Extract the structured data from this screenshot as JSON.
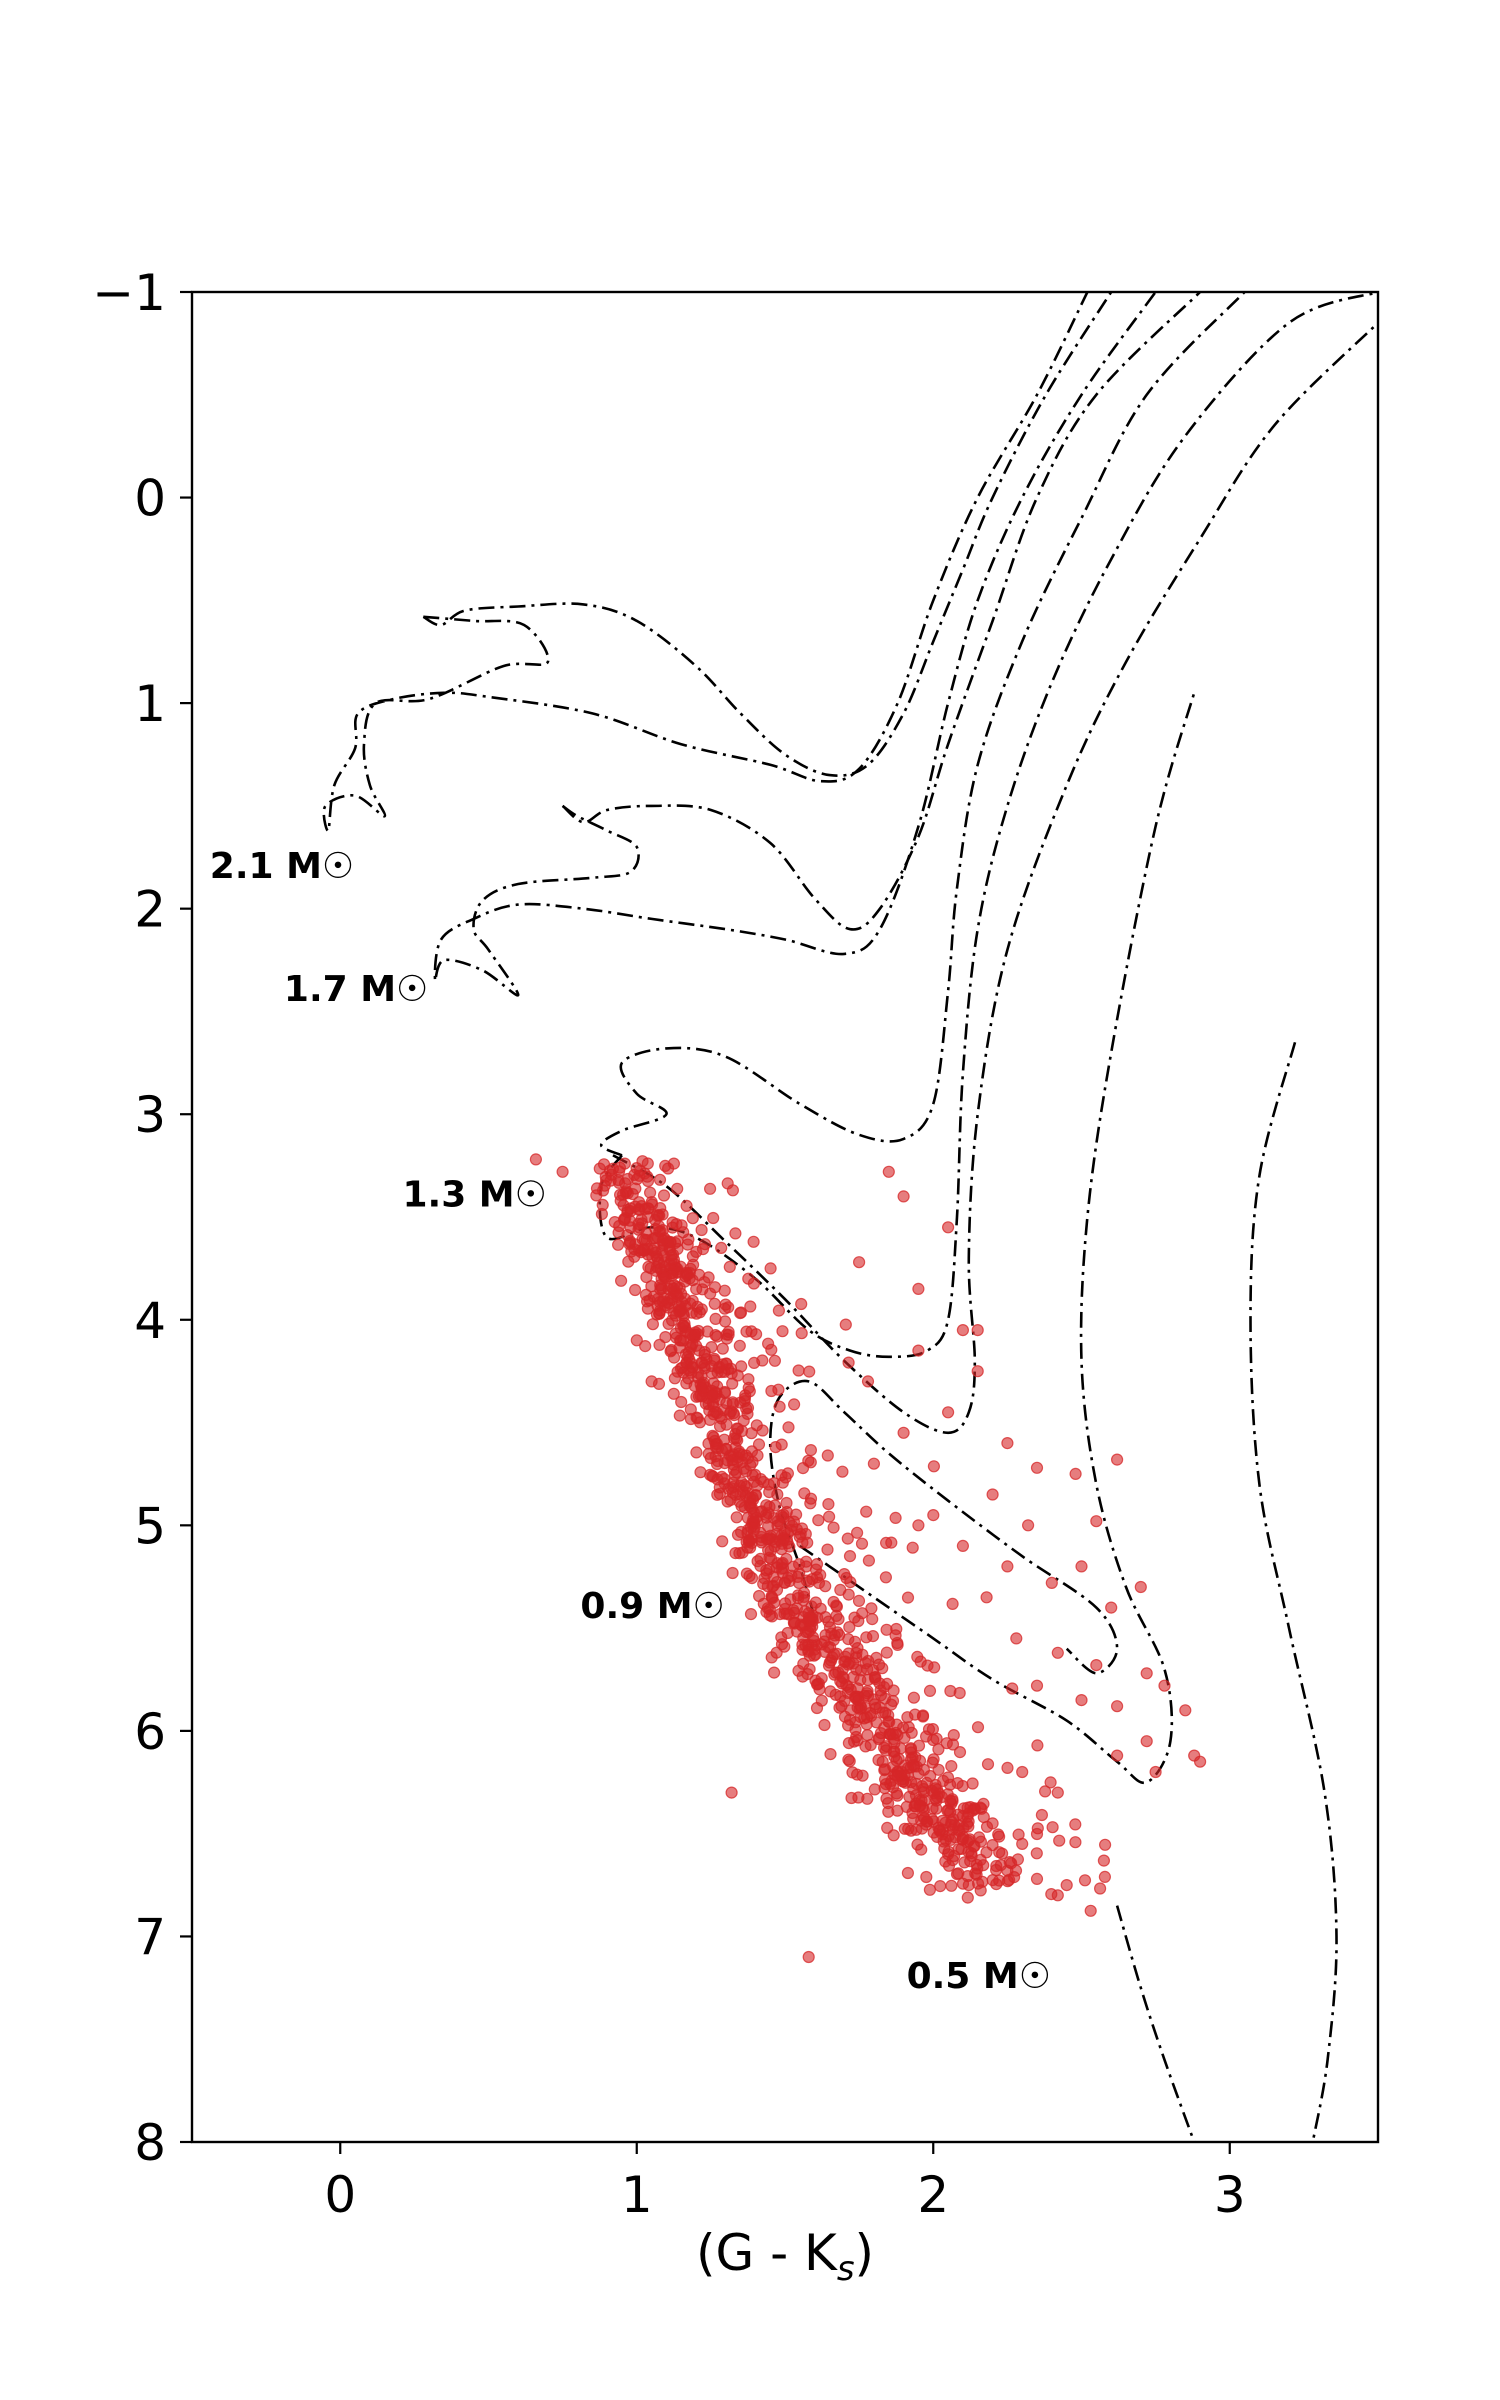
{
  "chart_data": {
    "type": "scatter",
    "title": "",
    "xlabel": "(G - K",
    "xlabel_sub": "s",
    "xlabel_close": ")",
    "ylabel": "",
    "xlim": [
      -0.5,
      3.5
    ],
    "ylim": [
      8,
      -1
    ],
    "y_inverted": true,
    "grid": false,
    "legend": "none",
    "x_ticks": [
      {
        "value": 0,
        "label": "0"
      },
      {
        "value": 1,
        "label": "1"
      },
      {
        "value": 2,
        "label": "2"
      },
      {
        "value": 3,
        "label": "3"
      }
    ],
    "y_ticks": [
      {
        "value": -1,
        "label": "−1"
      },
      {
        "value": 0,
        "label": "0"
      },
      {
        "value": 1,
        "label": "1"
      },
      {
        "value": 2,
        "label": "2"
      },
      {
        "value": 3,
        "label": "3"
      },
      {
        "value": 4,
        "label": "4"
      },
      {
        "value": 5,
        "label": "5"
      },
      {
        "value": 6,
        "label": "6"
      },
      {
        "value": 7,
        "label": "7"
      },
      {
        "value": 8,
        "label": "8"
      }
    ],
    "colors": {
      "stars": "#d62728",
      "tracks": "#000000"
    },
    "annotations": [
      {
        "text": "2.1 M☉",
        "x": -0.44,
        "y": 1.85
      },
      {
        "text": "1.7 M☉",
        "x": -0.19,
        "y": 2.45
      },
      {
        "text": "1.3 M☉",
        "x": 0.21,
        "y": 3.45
      },
      {
        "text": "0.9 M☉",
        "x": 0.81,
        "y": 5.45
      },
      {
        "text": "0.5 M☉",
        "x": 1.91,
        "y": 7.25
      }
    ],
    "stars": {
      "name": "",
      "ridge": [
        [
          0.95,
          3.25
        ],
        [
          1.05,
          3.6
        ],
        [
          1.15,
          3.95
        ],
        [
          1.25,
          4.35
        ],
        [
          1.35,
          4.75
        ],
        [
          1.45,
          5.1
        ],
        [
          1.55,
          5.45
        ],
        [
          1.7,
          5.75
        ],
        [
          1.85,
          6.1
        ],
        [
          2.0,
          6.4
        ],
        [
          2.15,
          6.7
        ]
      ],
      "outliers": [
        [
          0.66,
          3.22
        ],
        [
          0.75,
          3.28
        ],
        [
          1.85,
          3.28
        ],
        [
          1.9,
          3.4
        ],
        [
          2.05,
          3.55
        ],
        [
          1.75,
          3.72
        ],
        [
          1.95,
          3.85
        ],
        [
          2.1,
          4.05
        ],
        [
          2.15,
          4.25
        ],
        [
          2.05,
          4.45
        ],
        [
          2.25,
          4.6
        ],
        [
          2.35,
          4.72
        ],
        [
          2.2,
          4.85
        ],
        [
          2.48,
          4.75
        ],
        [
          2.62,
          4.68
        ],
        [
          2.32,
          5.0
        ],
        [
          2.55,
          4.98
        ],
        [
          2.1,
          5.1
        ],
        [
          2.25,
          5.2
        ],
        [
          2.4,
          5.28
        ],
        [
          2.5,
          5.2
        ],
        [
          2.6,
          5.4
        ],
        [
          2.7,
          5.3
        ],
        [
          2.18,
          5.35
        ],
        [
          2.28,
          5.55
        ],
        [
          2.42,
          5.62
        ],
        [
          2.55,
          5.68
        ],
        [
          2.72,
          5.72
        ],
        [
          2.35,
          5.78
        ],
        [
          2.5,
          5.85
        ],
        [
          2.62,
          5.88
        ],
        [
          2.78,
          5.78
        ],
        [
          2.85,
          5.9
        ],
        [
          2.72,
          6.05
        ],
        [
          2.62,
          6.12
        ],
        [
          2.88,
          6.12
        ],
        [
          2.75,
          6.2
        ],
        [
          2.9,
          6.15
        ],
        [
          2.3,
          6.2
        ],
        [
          2.42,
          6.3
        ],
        [
          2.2,
          6.45
        ],
        [
          2.3,
          6.55
        ],
        [
          2.25,
          6.68
        ],
        [
          2.35,
          6.72
        ],
        [
          2.42,
          6.8
        ],
        [
          2.45,
          6.75
        ],
        [
          1.32,
          6.3
        ],
        [
          1.58,
          7.1
        ],
        [
          2.05,
          6.6
        ],
        [
          2.12,
          6.75
        ],
        [
          1.15,
          4.4
        ],
        [
          1.05,
          4.3
        ],
        [
          1.0,
          4.1
        ],
        [
          1.95,
          5.0
        ],
        [
          2.0,
          4.95
        ],
        [
          1.8,
          4.7
        ],
        [
          1.9,
          4.55
        ],
        [
          1.78,
          4.3
        ],
        [
          1.95,
          4.15
        ],
        [
          2.15,
          4.05
        ]
      ]
    },
    "tracks": [
      {
        "name": "",
        "points": [
          [
            0.28,
            0.58
          ],
          [
            0.45,
            0.6
          ],
          [
            0.62,
            0.62
          ],
          [
            0.7,
            0.8
          ],
          [
            0.55,
            0.82
          ],
          [
            0.3,
            0.98
          ],
          [
            0.12,
            1.0
          ],
          [
            0.08,
            1.2
          ],
          [
            0.1,
            1.4
          ],
          [
            0.15,
            1.55
          ],
          [
            0.05,
            1.45
          ],
          [
            -0.05,
            1.5
          ],
          [
            -0.04,
            1.62
          ],
          [
            -0.02,
            1.4
          ],
          [
            0.05,
            1.22
          ],
          [
            0.06,
            1.05
          ],
          [
            0.18,
            0.98
          ],
          [
            0.35,
            0.95
          ],
          [
            0.5,
            0.97
          ],
          [
            0.85,
            1.05
          ],
          [
            1.15,
            1.2
          ],
          [
            1.45,
            1.3
          ],
          [
            1.62,
            1.38
          ],
          [
            1.75,
            1.32
          ],
          [
            1.88,
            1.0
          ],
          [
            2.0,
            0.5
          ],
          [
            2.15,
            0.0
          ],
          [
            2.35,
            -0.5
          ],
          [
            2.52,
            -1.0
          ]
        ]
      },
      {
        "name": "",
        "points": [
          [
            0.28,
            0.58
          ],
          [
            0.34,
            0.62
          ],
          [
            0.42,
            0.55
          ],
          [
            0.6,
            0.53
          ],
          [
            0.82,
            0.52
          ],
          [
            1.0,
            0.6
          ],
          [
            1.2,
            0.82
          ],
          [
            1.35,
            1.05
          ],
          [
            1.5,
            1.25
          ],
          [
            1.65,
            1.35
          ],
          [
            1.78,
            1.3
          ],
          [
            1.9,
            1.05
          ],
          [
            2.0,
            0.7
          ],
          [
            2.1,
            0.35
          ],
          [
            2.2,
            0.0
          ],
          [
            2.38,
            -0.5
          ],
          [
            2.6,
            -1.0
          ]
        ]
      },
      {
        "name": "",
        "points": [
          [
            0.75,
            1.5
          ],
          [
            0.8,
            1.55
          ],
          [
            0.9,
            1.62
          ],
          [
            1.0,
            1.7
          ],
          [
            0.98,
            1.82
          ],
          [
            0.85,
            1.85
          ],
          [
            0.6,
            1.88
          ],
          [
            0.48,
            1.96
          ],
          [
            0.45,
            2.1
          ],
          [
            0.5,
            2.2
          ],
          [
            0.6,
            2.42
          ],
          [
            0.48,
            2.3
          ],
          [
            0.35,
            2.25
          ],
          [
            0.32,
            2.35
          ],
          [
            0.34,
            2.15
          ],
          [
            0.45,
            2.05
          ],
          [
            0.6,
            1.98
          ],
          [
            0.82,
            2.0
          ],
          [
            1.05,
            2.05
          ],
          [
            1.3,
            2.1
          ],
          [
            1.5,
            2.15
          ],
          [
            1.7,
            2.22
          ],
          [
            1.82,
            2.1
          ],
          [
            1.95,
            1.6
          ],
          [
            2.05,
            1.0
          ],
          [
            2.15,
            0.5
          ],
          [
            2.3,
            0.0
          ],
          [
            2.5,
            -0.5
          ],
          [
            2.75,
            -1.0
          ]
        ]
      },
      {
        "name": "",
        "points": [
          [
            0.75,
            1.5
          ],
          [
            0.82,
            1.58
          ],
          [
            0.9,
            1.52
          ],
          [
            1.05,
            1.5
          ],
          [
            1.25,
            1.52
          ],
          [
            1.45,
            1.68
          ],
          [
            1.6,
            1.95
          ],
          [
            1.72,
            2.1
          ],
          [
            1.82,
            2.0
          ],
          [
            1.95,
            1.65
          ],
          [
            2.05,
            1.2
          ],
          [
            2.2,
            0.6
          ],
          [
            2.35,
            0.0
          ],
          [
            2.55,
            -0.5
          ],
          [
            2.9,
            -1.0
          ]
        ]
      },
      {
        "name": "",
        "points": [
          [
            0.95,
            3.2
          ],
          [
            0.88,
            3.15
          ],
          [
            0.95,
            3.08
          ],
          [
            1.1,
            3.0
          ],
          [
            1.0,
            2.9
          ],
          [
            0.95,
            2.75
          ],
          [
            1.1,
            2.68
          ],
          [
            1.3,
            2.72
          ],
          [
            1.55,
            2.95
          ],
          [
            1.75,
            3.1
          ],
          [
            1.9,
            3.12
          ],
          [
            2.0,
            2.95
          ],
          [
            2.05,
            2.4
          ],
          [
            2.08,
            1.9
          ],
          [
            2.15,
            1.3
          ],
          [
            2.3,
            0.7
          ],
          [
            2.5,
            0.1
          ],
          [
            2.72,
            -0.5
          ],
          [
            3.05,
            -1.0
          ]
        ]
      },
      {
        "name": "",
        "points": [
          [
            0.95,
            3.2
          ],
          [
            0.88,
            3.35
          ],
          [
            0.9,
            3.6
          ],
          [
            1.05,
            3.55
          ],
          [
            1.2,
            3.6
          ],
          [
            1.4,
            3.8
          ],
          [
            1.58,
            4.05
          ],
          [
            1.72,
            4.15
          ],
          [
            1.85,
            4.18
          ],
          [
            1.98,
            4.15
          ],
          [
            2.05,
            4.0
          ],
          [
            2.08,
            3.5
          ],
          [
            2.1,
            2.8
          ],
          [
            2.15,
            2.1
          ],
          [
            2.25,
            1.5
          ],
          [
            2.4,
            0.9
          ],
          [
            2.6,
            0.3
          ],
          [
            2.85,
            -0.3
          ],
          [
            3.2,
            -0.85
          ],
          [
            3.5,
            -1.0
          ]
        ]
      },
      {
        "name": "",
        "points": [
          [
            0.92,
            3.2
          ],
          [
            1.1,
            3.35
          ],
          [
            1.3,
            3.62
          ],
          [
            1.5,
            3.9
          ],
          [
            1.7,
            4.2
          ],
          [
            1.9,
            4.45
          ],
          [
            2.05,
            4.55
          ],
          [
            2.12,
            4.45
          ],
          [
            2.14,
            4.2
          ],
          [
            2.12,
            3.7
          ],
          [
            2.15,
            3.0
          ],
          [
            2.25,
            2.2
          ],
          [
            2.45,
            1.4
          ],
          [
            2.65,
            0.8
          ],
          [
            2.9,
            0.2
          ],
          [
            3.15,
            -0.35
          ],
          [
            3.5,
            -0.85
          ]
        ]
      },
      {
        "name": "",
        "points": [
          [
            1.6,
            5.45
          ],
          [
            1.55,
            5.2
          ],
          [
            1.48,
            4.9
          ],
          [
            1.45,
            4.6
          ],
          [
            1.48,
            4.38
          ],
          [
            1.58,
            4.3
          ],
          [
            1.7,
            4.45
          ],
          [
            1.85,
            4.65
          ],
          [
            2.05,
            4.88
          ],
          [
            2.3,
            5.15
          ],
          [
            2.55,
            5.4
          ],
          [
            2.62,
            5.6
          ],
          [
            2.55,
            5.72
          ],
          [
            2.45,
            5.6
          ]
        ]
      },
      {
        "name": "",
        "points": [
          [
            1.55,
            5.1
          ],
          [
            1.65,
            5.2
          ],
          [
            1.8,
            5.35
          ],
          [
            2.0,
            5.55
          ],
          [
            2.2,
            5.75
          ],
          [
            2.45,
            5.95
          ],
          [
            2.62,
            6.15
          ],
          [
            2.72,
            6.25
          ],
          [
            2.8,
            6.05
          ],
          [
            2.78,
            5.7
          ],
          [
            2.65,
            5.3
          ],
          [
            2.55,
            4.8
          ],
          [
            2.5,
            4.2
          ],
          [
            2.52,
            3.5
          ],
          [
            2.6,
            2.7
          ],
          [
            2.75,
            1.6
          ],
          [
            2.88,
            0.95
          ]
        ]
      },
      {
        "name": "",
        "points": [
          [
            2.62,
            6.85
          ],
          [
            2.7,
            7.25
          ],
          [
            2.78,
            7.6
          ],
          [
            2.88,
            8.0
          ]
        ]
      },
      {
        "name": "",
        "points": [
          [
            3.22,
            2.65
          ],
          [
            3.1,
            3.3
          ],
          [
            3.07,
            4.0
          ],
          [
            3.1,
            4.8
          ],
          [
            3.2,
            5.5
          ],
          [
            3.32,
            6.3
          ],
          [
            3.36,
            7.0
          ],
          [
            3.33,
            7.6
          ],
          [
            3.28,
            8.0
          ]
        ]
      }
    ]
  }
}
